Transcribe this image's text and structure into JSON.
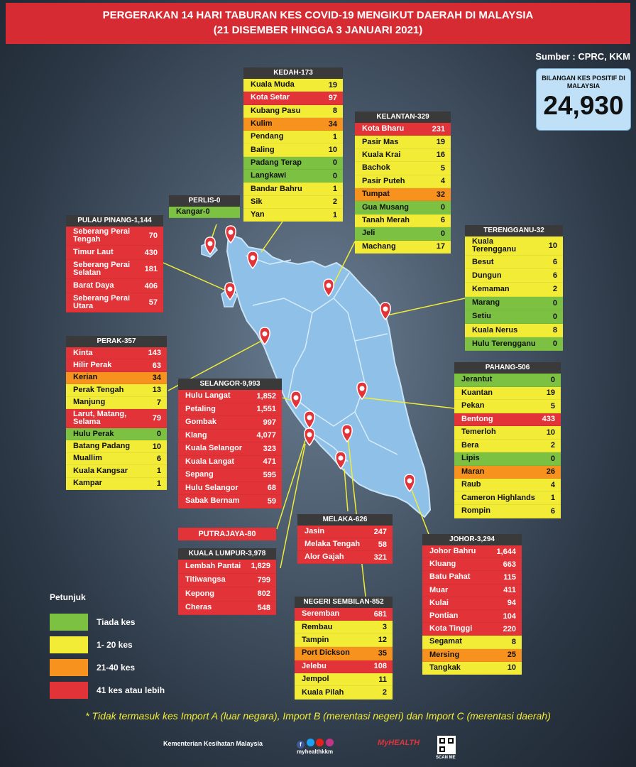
{
  "title_line1": "PERGERAKAN 14 HARI TABURAN KES COVID-19 MENGIKUT DAERAH DI MALAYSIA",
  "title_line2": "(21 DISEMBER HINGGA 3 JANUARI 2021)",
  "source": "Sumber : CPRC, KKM",
  "total": {
    "label": "BILANGAN KES POSITIF DI MALAYSIA",
    "value": "24,930"
  },
  "legend": {
    "title": "Petunjuk",
    "items": [
      {
        "label": "Tiada kes",
        "color": "#7cc142"
      },
      {
        "label": "1- 20 kes",
        "color": "#f2ec37"
      },
      {
        "label": "21-40 kes",
        "color": "#f7921e"
      },
      {
        "label": "41 kes atau lebih",
        "color": "#e23339"
      }
    ]
  },
  "note": "* Tidak termasuk kes Import A (luar negara),  Import B (merentasi negeri) dan Import C (merentasi daerah)",
  "footer": {
    "ministry": "Kementerian Kesihatan Malaysia",
    "handle": "myhealthkkm",
    "brand": "MyHEALTH",
    "scan": "SCAN ME"
  },
  "states": {
    "kedah": {
      "title": "KEDAH-173",
      "rows": [
        {
          "name": "Kuala Muda",
          "value": "19",
          "level": 1
        },
        {
          "name": "Kota Setar",
          "value": "97",
          "level": 3
        },
        {
          "name": "Kubang Pasu",
          "value": "8",
          "level": 1
        },
        {
          "name": "Kulim",
          "value": "34",
          "level": 2
        },
        {
          "name": "Pendang",
          "value": "1",
          "level": 1
        },
        {
          "name": "Baling",
          "value": "10",
          "level": 1
        },
        {
          "name": "Padang Terap",
          "value": "0",
          "level": 0
        },
        {
          "name": "Langkawi",
          "value": "0",
          "level": 0
        },
        {
          "name": "Bandar Bahru",
          "value": "1",
          "level": 1
        },
        {
          "name": "Sik",
          "value": "2",
          "level": 1
        },
        {
          "name": "Yan",
          "value": "1",
          "level": 1
        }
      ]
    },
    "kelantan": {
      "title": "KELANTAN-329",
      "rows": [
        {
          "name": "Kota Bharu",
          "value": "231",
          "level": 3
        },
        {
          "name": "Pasir Mas",
          "value": "19",
          "level": 1
        },
        {
          "name": "Kuala Krai",
          "value": "16",
          "level": 1
        },
        {
          "name": "Bachok",
          "value": "5",
          "level": 1
        },
        {
          "name": "Pasir Puteh",
          "value": "4",
          "level": 1
        },
        {
          "name": "Tumpat",
          "value": "32",
          "level": 2
        },
        {
          "name": "Gua Musang",
          "value": "0",
          "level": 0
        },
        {
          "name": "Tanah Merah",
          "value": "6",
          "level": 1
        },
        {
          "name": "Jeli",
          "value": "0",
          "level": 0
        },
        {
          "name": "Machang",
          "value": "17",
          "level": 1
        }
      ]
    },
    "perlis": {
      "title": "PERLIS-0",
      "rows": [
        {
          "name": "Kangar-0",
          "value": "",
          "level": 0
        }
      ]
    },
    "pinang": {
      "title": "PULAU PINANG-1,144",
      "rows": [
        {
          "name": "Seberang Perai\nTengah",
          "value": "70",
          "level": 3
        },
        {
          "name": "Timur Laut",
          "value": "430",
          "level": 3
        },
        {
          "name": "Seberang Perai\nSelatan",
          "value": "181",
          "level": 3
        },
        {
          "name": "Barat Daya",
          "value": "406",
          "level": 3
        },
        {
          "name": "Seberang Perai\nUtara",
          "value": "57",
          "level": 3
        }
      ]
    },
    "terengganu": {
      "title": "TERENGGANU-32",
      "rows": [
        {
          "name": "Kuala\nTerengganu",
          "value": "10",
          "level": 1
        },
        {
          "name": "Besut",
          "value": "6",
          "level": 1
        },
        {
          "name": "Dungun",
          "value": "6",
          "level": 1
        },
        {
          "name": "Kemaman",
          "value": "2",
          "level": 1
        },
        {
          "name": "Marang",
          "value": "0",
          "level": 0
        },
        {
          "name": "Setiu",
          "value": "0",
          "level": 0
        },
        {
          "name": "Kuala Nerus",
          "value": "8",
          "level": 1
        },
        {
          "name": "Hulu Terengganu",
          "value": "0",
          "level": 0
        }
      ]
    },
    "perak": {
      "title": "PERAK-357",
      "rows": [
        {
          "name": "Kinta",
          "value": "143",
          "level": 3
        },
        {
          "name": "Hilir Perak",
          "value": "63",
          "level": 3
        },
        {
          "name": "Kerian",
          "value": "34",
          "level": 2
        },
        {
          "name": "Perak Tengah",
          "value": "13",
          "level": 1
        },
        {
          "name": "Manjung",
          "value": "7",
          "level": 1
        },
        {
          "name": "Larut, Matang,\nSelama",
          "value": "79",
          "level": 3
        },
        {
          "name": "Hulu Perak",
          "value": "0",
          "level": 0
        },
        {
          "name": "Batang Padang",
          "value": "10",
          "level": 1
        },
        {
          "name": "Muallim",
          "value": "6",
          "level": 1
        },
        {
          "name": "Kuala Kangsar",
          "value": "1",
          "level": 1
        },
        {
          "name": "Kampar",
          "value": "1",
          "level": 1
        }
      ]
    },
    "selangor": {
      "title": "SELANGOR-9,993",
      "rows": [
        {
          "name": "Hulu Langat",
          "value": "1,852",
          "level": 3
        },
        {
          "name": "Petaling",
          "value": "1,551",
          "level": 3
        },
        {
          "name": "Gombak",
          "value": "997",
          "level": 3
        },
        {
          "name": "Klang",
          "value": "4,077",
          "level": 3
        },
        {
          "name": "Kuala Selangor",
          "value": "323",
          "level": 3
        },
        {
          "name": "Kuala Langat",
          "value": "471",
          "level": 3
        },
        {
          "name": "Sepang",
          "value": "595",
          "level": 3
        },
        {
          "name": "Hulu Selangor",
          "value": "68",
          "level": 3
        },
        {
          "name": "Sabak Bernam",
          "value": "59",
          "level": 3
        }
      ]
    },
    "pahang": {
      "title": "PAHANG-506",
      "rows": [
        {
          "name": "Jerantut",
          "value": "0",
          "level": 0
        },
        {
          "name": "Kuantan",
          "value": "19",
          "level": 1
        },
        {
          "name": "Pekan",
          "value": "5",
          "level": 1
        },
        {
          "name": "Bentong",
          "value": "433",
          "level": 3
        },
        {
          "name": "Temerloh",
          "value": "10",
          "level": 1
        },
        {
          "name": "Bera",
          "value": "2",
          "level": 1
        },
        {
          "name": "Lipis",
          "value": "0",
          "level": 0
        },
        {
          "name": "Maran",
          "value": "26",
          "level": 2
        },
        {
          "name": "Raub",
          "value": "4",
          "level": 1
        },
        {
          "name": "Cameron Highlands",
          "value": "1",
          "level": 1
        },
        {
          "name": "Rompin",
          "value": "6",
          "level": 1
        }
      ]
    },
    "putrajaya": {
      "title": "PUTRAJAYA-80"
    },
    "kl": {
      "title": "KUALA LUMPUR-3,978",
      "rows": [
        {
          "name": "Lembah Pantai",
          "value": "1,829",
          "level": 3
        },
        {
          "name": "Titiwangsa",
          "value": "799",
          "level": 3
        },
        {
          "name": "Kepong",
          "value": "802",
          "level": 3
        },
        {
          "name": "Cheras",
          "value": "548",
          "level": 3
        }
      ]
    },
    "melaka": {
      "title": "MELAKA-626",
      "rows": [
        {
          "name": "Jasin",
          "value": "247",
          "level": 3
        },
        {
          "name": "Melaka Tengah",
          "value": "58",
          "level": 3
        },
        {
          "name": "Alor Gajah",
          "value": "321",
          "level": 3
        }
      ]
    },
    "johor": {
      "title": "JOHOR-3,294",
      "rows": [
        {
          "name": "Johor Bahru",
          "value": "1,644",
          "level": 3
        },
        {
          "name": "Kluang",
          "value": "663",
          "level": 3
        },
        {
          "name": "Batu Pahat",
          "value": "115",
          "level": 3
        },
        {
          "name": "Muar",
          "value": "411",
          "level": 3
        },
        {
          "name": "Kulai",
          "value": "94",
          "level": 3
        },
        {
          "name": "Pontian",
          "value": "104",
          "level": 3
        },
        {
          "name": "Kota Tinggi",
          "value": "220",
          "level": 3
        },
        {
          "name": "Segamat",
          "value": "8",
          "level": 1
        },
        {
          "name": "Mersing",
          "value": "25",
          "level": 2
        },
        {
          "name": "Tangkak",
          "value": "10",
          "level": 1
        }
      ]
    },
    "ns": {
      "title": "NEGERI SEMBILAN-852",
      "rows": [
        {
          "name": "Seremban",
          "value": "681",
          "level": 3
        },
        {
          "name": "Rembau",
          "value": "3",
          "level": 1
        },
        {
          "name": "Tampin",
          "value": "12",
          "level": 1
        },
        {
          "name": "Port Dickson",
          "value": "35",
          "level": 2
        },
        {
          "name": "Jelebu",
          "value": "108",
          "level": 3
        },
        {
          "name": "Jempol",
          "value": "11",
          "level": 1
        },
        {
          "name": "Kuala Pilah",
          "value": "2",
          "level": 1
        }
      ]
    }
  }
}
